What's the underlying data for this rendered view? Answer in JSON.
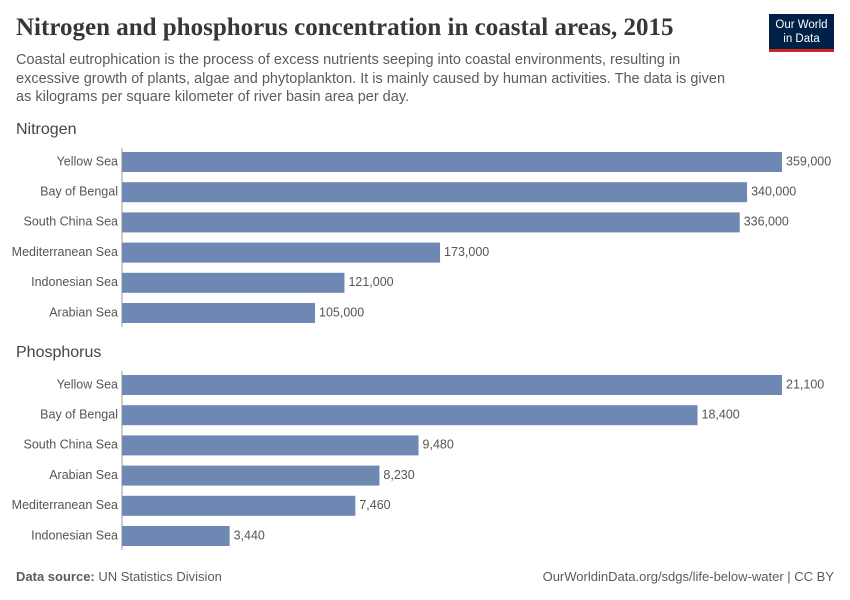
{
  "header": {
    "title": "Nitrogen and phosphorus concentration in coastal areas, 2015",
    "subtitle": "Coastal eutrophication is the process of excess nutrients seeping into coastal environments, resulting in excessive growth of plants, algae and phytoplankton. It is mainly caused by human activities. The data is given as kilograms per square kilometer of river basin area per day.",
    "logo": [
      "Our World",
      "in Data"
    ]
  },
  "chart_data": [
    {
      "type": "bar",
      "orientation": "horizontal",
      "title": "Nitrogen",
      "color": "#6e87b3",
      "categories": [
        "Yellow Sea",
        "Bay of Bengal",
        "South China Sea",
        "Mediterranean Sea",
        "Indonesian Sea",
        "Arabian Sea"
      ],
      "values": [
        359000,
        340000,
        336000,
        173000,
        121000,
        105000
      ],
      "value_labels": [
        "359,000",
        "340,000",
        "336,000",
        "173,000",
        "121,000",
        "105,000"
      ]
    },
    {
      "type": "bar",
      "orientation": "horizontal",
      "title": "Phosphorus",
      "color": "#6e87b3",
      "categories": [
        "Yellow Sea",
        "Bay of Bengal",
        "South China Sea",
        "Arabian Sea",
        "Mediterranean Sea",
        "Indonesian Sea"
      ],
      "values": [
        21100,
        18400,
        9480,
        8230,
        7460,
        3440
      ],
      "value_labels": [
        "21,100",
        "18,400",
        "9,480",
        "8,230",
        "7,460",
        "3,440"
      ]
    }
  ],
  "footer": {
    "source_label": "Data source:",
    "source": "UN Statistics Division",
    "url": "OurWorldinData.org/sdgs/life-below-water | CC BY"
  }
}
